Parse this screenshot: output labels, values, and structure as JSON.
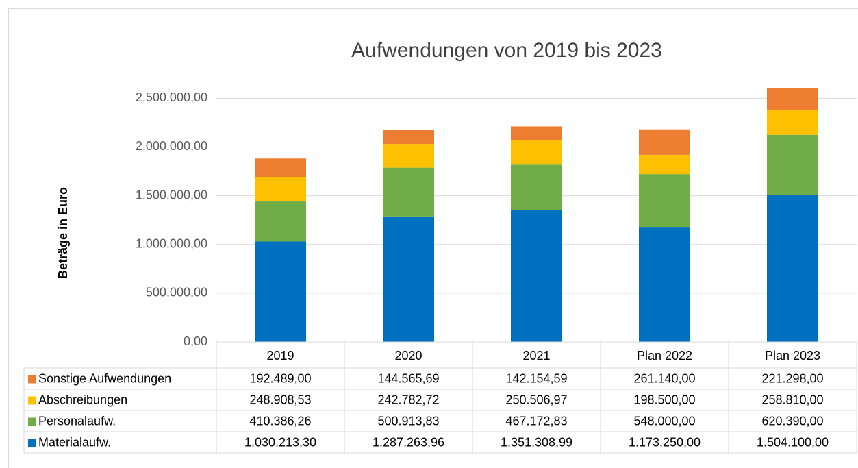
{
  "chart_data": {
    "type": "bar",
    "stacked": true,
    "title": "Aufwendungen von 2019 bis 2023",
    "y_label": "Beträge in Euro",
    "categories": [
      "2019",
      "2020",
      "2021",
      "Plan 2022",
      "Plan 2023"
    ],
    "series": [
      {
        "name": "Materialaufw.",
        "color": "#0070C0",
        "values": [
          1030213.3,
          1287263.96,
          1351308.99,
          1173250.0,
          1504100.0
        ],
        "value_labels": [
          "1.030.213,30",
          "1.287.263,96",
          "1.351.308,99",
          "1.173.250,00",
          "1.504.100,00"
        ]
      },
      {
        "name": "Personalaufw.",
        "color": "#70AD47",
        "values": [
          410386.26,
          500913.83,
          467172.83,
          548000.0,
          620390.0
        ],
        "value_labels": [
          "410.386,26",
          "500.913,83",
          "467.172,83",
          "548.000,00",
          "620.390,00"
        ]
      },
      {
        "name": "Abschreibungen",
        "color": "#FFC000",
        "values": [
          248908.53,
          242782.72,
          250506.97,
          198500.0,
          258810.0
        ],
        "value_labels": [
          "248.908,53",
          "242.782,72",
          "250.506,97",
          "198.500,00",
          "258.810,00"
        ]
      },
      {
        "name": "Sonstige Aufwendungen",
        "color": "#ED7D31",
        "values": [
          192489.0,
          144565.69,
          142154.59,
          261140.0,
          221298.0
        ],
        "value_labels": [
          "192.489,00",
          "144.565,69",
          "142.154,59",
          "261.140,00",
          "221.298,00"
        ]
      }
    ],
    "ylim": [
      0,
      2650000
    ],
    "yticks": [
      {
        "value": 0,
        "label": "0,00"
      },
      {
        "value": 500000,
        "label": "500.000,00"
      },
      {
        "value": 1000000,
        "label": "1.000.000,00"
      },
      {
        "value": 1500000,
        "label": "1.500.000,00"
      },
      {
        "value": 2000000,
        "label": "2.000.000,00"
      },
      {
        "value": 2500000,
        "label": "2.500.000,00"
      }
    ],
    "grid": true,
    "legend": "table"
  }
}
